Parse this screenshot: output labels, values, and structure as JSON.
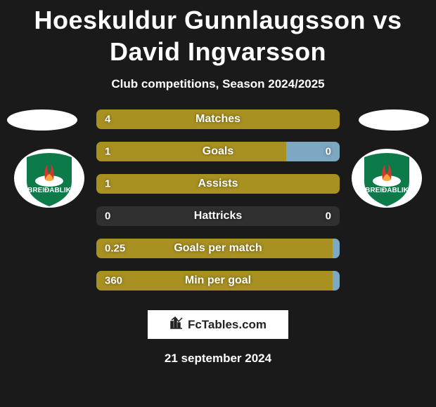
{
  "title": "Hoeskuldur Gunnlaugsson vs David Ingvarsson",
  "subtitle": "Club competitions, Season 2024/2025",
  "date": "21 september 2024",
  "attribution": "FcTables.com",
  "colors": {
    "background": "#1a1a1a",
    "bar_left": "#a99121",
    "bar_right": "#7da8c2",
    "bar_empty": "#303030",
    "text": "#ffffff"
  },
  "player_left": {
    "name": "Hoeskuldur Gunnlaugsson",
    "club": "Breidablik",
    "club_color_primary": "#0d7a4a",
    "club_color_secondary": "#ffffff"
  },
  "player_right": {
    "name": "David Ingvarsson",
    "club": "Breidablik",
    "club_color_primary": "#0d7a4a",
    "club_color_secondary": "#ffffff"
  },
  "stats": [
    {
      "label": "Matches",
      "left_value": "4",
      "right_value": "",
      "left_pct": 100,
      "right_pct": 0,
      "show_right": false
    },
    {
      "label": "Goals",
      "left_value": "1",
      "right_value": "0",
      "left_pct": 78,
      "right_pct": 22,
      "show_right": true
    },
    {
      "label": "Assists",
      "left_value": "1",
      "right_value": "",
      "left_pct": 100,
      "right_pct": 0,
      "show_right": false
    },
    {
      "label": "Hattricks",
      "left_value": "0",
      "right_value": "0",
      "left_pct": 0,
      "right_pct": 0,
      "show_right": true
    },
    {
      "label": "Goals per match",
      "left_value": "0.25",
      "right_value": "",
      "left_pct": 97,
      "right_pct": 3,
      "show_right": false
    },
    {
      "label": "Min per goal",
      "left_value": "360",
      "right_value": "",
      "left_pct": 97,
      "right_pct": 3,
      "show_right": false
    }
  ]
}
